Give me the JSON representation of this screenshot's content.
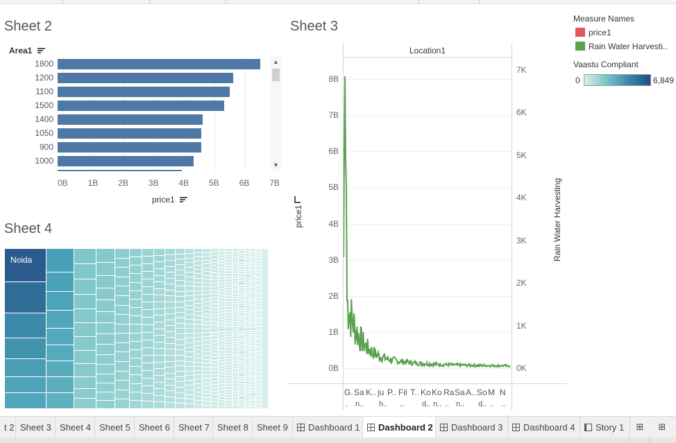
{
  "sheets": {
    "sheet2": {
      "title": "Sheet 2",
      "row_field": "Area1",
      "axis_title": "price1"
    },
    "sheet3": {
      "title": "Sheet 3",
      "column_header": "Location1",
      "y_left_title": "price1",
      "y_right_title": "Rain Water Harvesting"
    },
    "sheet4": {
      "title": "Sheet 4",
      "top_label": "Noida"
    }
  },
  "legend": {
    "measure_title": "Measure Names",
    "items": [
      {
        "label": "price1",
        "color": "#e15759"
      },
      {
        "label": "Rain Water Harvesti..",
        "color": "#59a14f"
      }
    ],
    "color_title": "Vaastu Compliant",
    "color_min": "0",
    "color_max": "6,849"
  },
  "chart_data": [
    {
      "type": "bar",
      "orientation": "horizontal",
      "categories": [
        "1800",
        "1200",
        "1100",
        "1500",
        "1400",
        "1050",
        "900",
        "1000"
      ],
      "values": [
        6.7,
        5.8,
        5.7,
        5.5,
        4.8,
        4.75,
        4.75,
        4.5
      ],
      "value_unit": "B",
      "xlabel": "price1",
      "ylabel": "Area1",
      "xlim": [
        0,
        7.3
      ],
      "x_ticks": [
        "0B",
        "1B",
        "2B",
        "3B",
        "4B",
        "5B",
        "6B",
        "7B"
      ]
    },
    {
      "type": "line",
      "column_header": "Location1",
      "series": [
        {
          "name": "Rain Water Harvesting",
          "color": "#59a14f"
        }
      ],
      "y_left_ticks": [
        "8B",
        "7B",
        "6B",
        "5B",
        "4B",
        "3B",
        "2B",
        "1B",
        "0B"
      ],
      "y_right_ticks": [
        "7K",
        "6K",
        "5K",
        "4K",
        "3K",
        "2K",
        "1K",
        "0K"
      ],
      "ylabel": "price1",
      "y2label": "Rain Water Harvesting",
      "x_labels": [
        "G.",
        "Sa",
        "K..",
        "ju",
        "P..",
        "Fil",
        "T..",
        "Ko",
        "Ko",
        "Ra",
        "Sa",
        "A..",
        "So",
        "M",
        "N"
      ],
      "x_labels_second": [
        ".",
        "n..",
        "",
        "h..",
        "",
        "..",
        "",
        "d..",
        "n..",
        "..",
        "n..",
        "",
        "d..",
        "..",
        ".."
      ]
    },
    {
      "type": "treemap",
      "top_label": "Noida",
      "color_scale": [
        "#d7efec",
        "#1f4e7e"
      ]
    }
  ],
  "tabs": [
    {
      "label": "t 2",
      "type": "sheet"
    },
    {
      "label": "Sheet 3",
      "type": "sheet"
    },
    {
      "label": "Sheet 4",
      "type": "sheet"
    },
    {
      "label": "Sheet 5",
      "type": "sheet"
    },
    {
      "label": "Sheet 6",
      "type": "sheet"
    },
    {
      "label": "Sheet 7",
      "type": "sheet"
    },
    {
      "label": "Sheet 8",
      "type": "sheet"
    },
    {
      "label": "Sheet 9",
      "type": "sheet"
    },
    {
      "label": "Dashboard 1",
      "type": "dashboard"
    },
    {
      "label": "Dashboard 2",
      "type": "dashboard",
      "active": true
    },
    {
      "label": "Dashboard 3",
      "type": "dashboard"
    },
    {
      "label": "Dashboard 4",
      "type": "dashboard"
    },
    {
      "label": "Story 1",
      "type": "story"
    }
  ],
  "icons": {
    "new_dashboard": "new-dashboard-icon",
    "new_story": "new-story-icon",
    "sort": "sort-icon"
  }
}
